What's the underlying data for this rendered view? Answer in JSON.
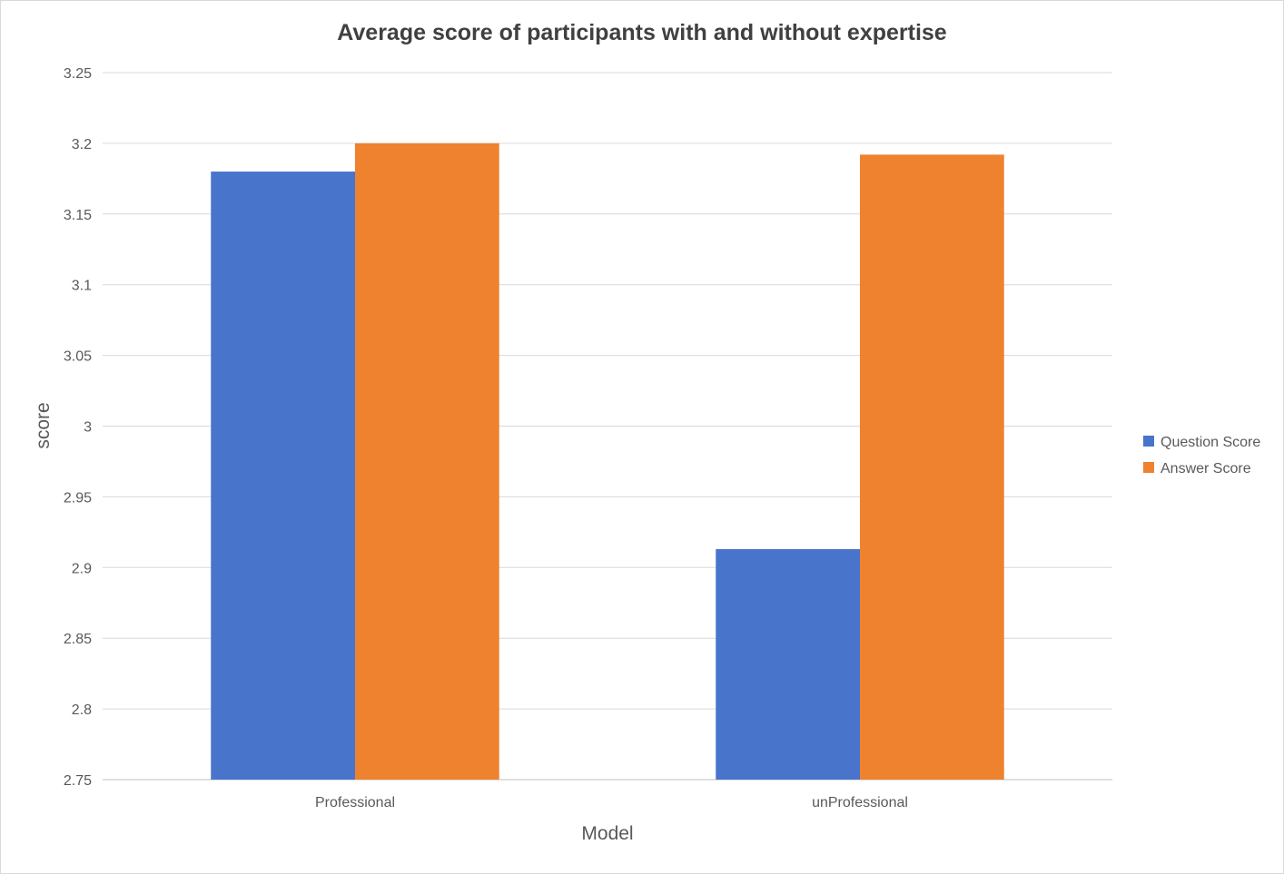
{
  "chart_data": {
    "type": "bar",
    "title": "Average score of participants with and without expertise",
    "xlabel": "Model",
    "ylabel": "score",
    "categories": [
      "Professional",
      "unProfessional"
    ],
    "series": [
      {
        "name": "Question Score",
        "color": "#4874CB",
        "values": [
          3.18,
          2.913
        ]
      },
      {
        "name": "Answer Score",
        "color": "#EE822F",
        "values": [
          3.2,
          3.192
        ]
      }
    ],
    "ylim": [
      2.75,
      3.25
    ],
    "yticks": [
      2.75,
      2.8,
      2.85,
      2.9,
      2.95,
      3,
      3.05,
      3.1,
      3.15,
      3.2,
      3.25
    ],
    "ytick_labels": [
      "2.75",
      "2.8",
      "2.85",
      "2.9",
      "2.95",
      "3",
      "3.05",
      "3.1",
      "3.15",
      "3.2",
      "3.25"
    ],
    "grid": true,
    "legend": "right"
  }
}
